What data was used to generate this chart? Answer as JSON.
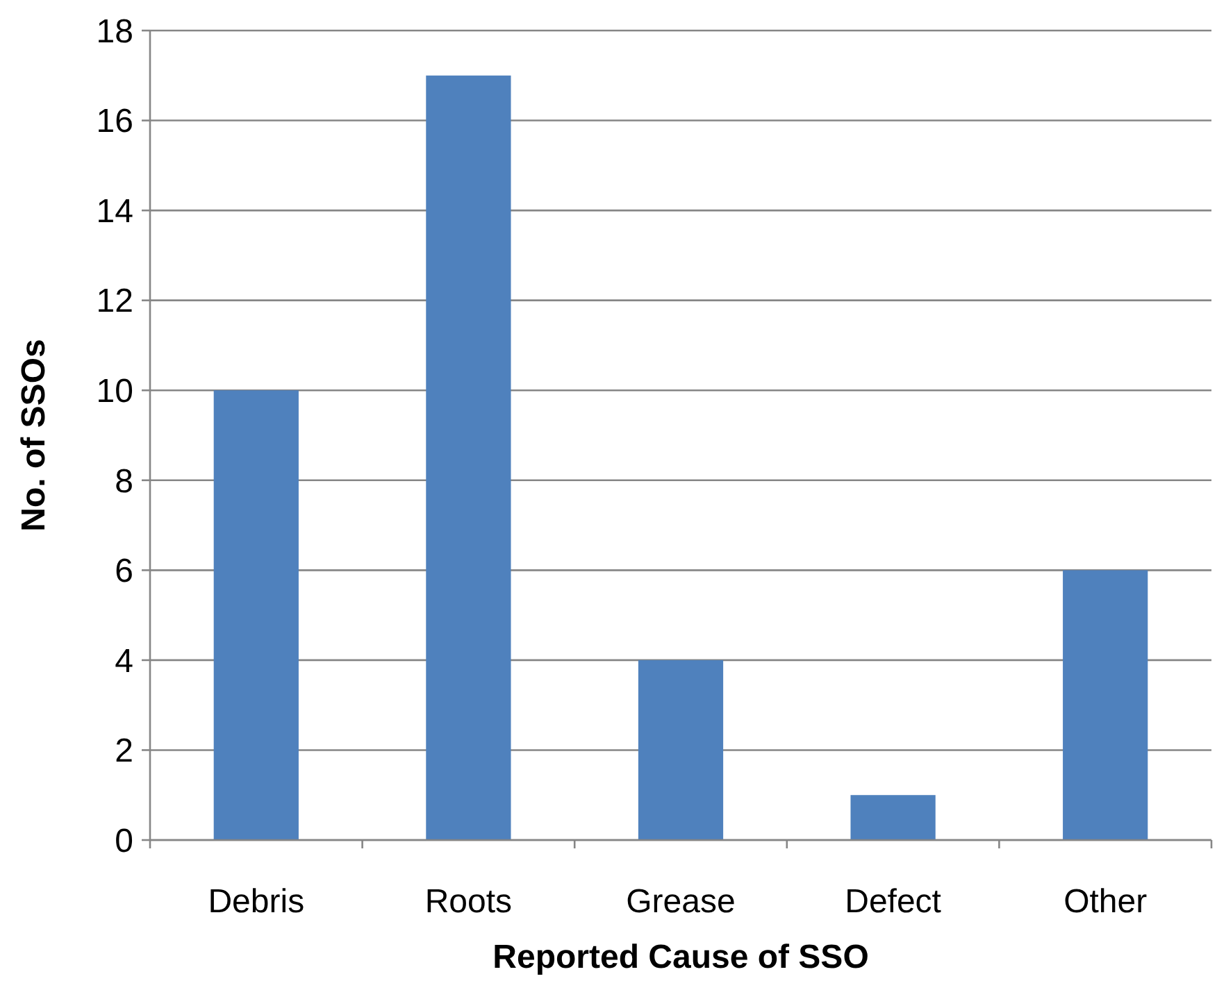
{
  "chart_data": {
    "type": "bar",
    "xlabel": "Reported Cause of SSO",
    "ylabel": "No. of SSOs",
    "categories": [
      "Debris",
      "Roots",
      "Grease",
      "Defect",
      "Other"
    ],
    "values": [
      10,
      17,
      4,
      1,
      6
    ],
    "color": "#4f81bd",
    "ylim": [
      0,
      18
    ],
    "yticks": [
      0,
      2,
      4,
      6,
      8,
      10,
      12,
      14,
      16,
      18
    ],
    "grid": "y"
  }
}
